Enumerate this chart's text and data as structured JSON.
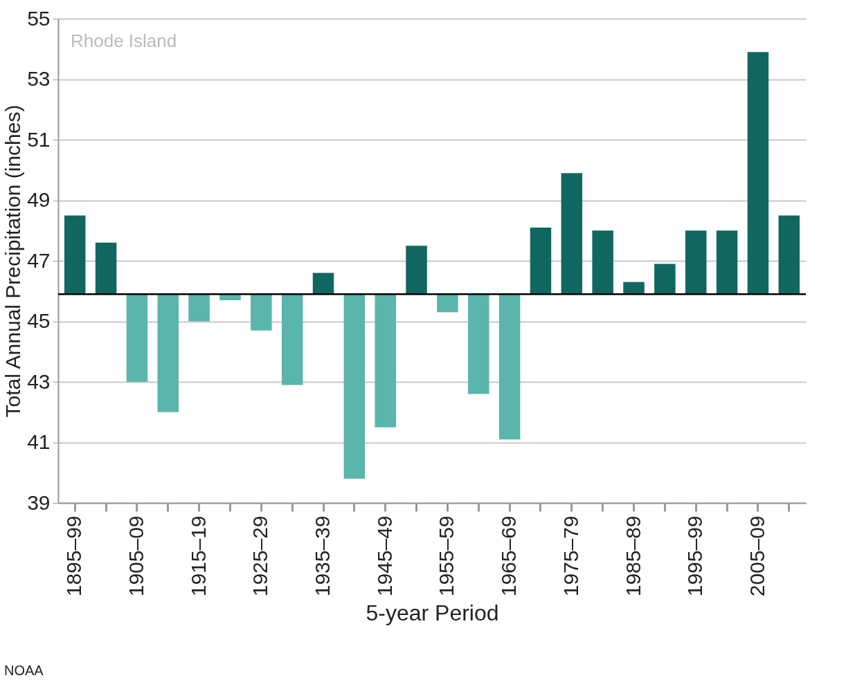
{
  "chart_data": {
    "type": "bar",
    "title": "Rhode Island",
    "xlabel": "5-year Period",
    "ylabel": "Total Annual Precipitation (inches)",
    "categories": [
      "1895–99",
      null,
      "1905–09",
      null,
      "1915–19",
      null,
      "1925–29",
      null,
      "1935–39",
      null,
      "1945–49",
      null,
      "1955–59",
      null,
      "1965–69",
      null,
      "1975–79",
      null,
      "1985–89",
      null,
      "1995–99",
      null,
      "2005–09",
      null
    ],
    "base": [
      45.9,
      45.9,
      45.9,
      45.9,
      45.9,
      45.9,
      45.9,
      45.9,
      45.9,
      45.9,
      45.9,
      45.9,
      45.9,
      45.9,
      45.9,
      45.9,
      45.9,
      45.9,
      45.9,
      45.9,
      45.9,
      45.9,
      45.9,
      45.9
    ],
    "values": [
      2.6,
      1.7,
      -2.9,
      -3.9,
      -0.9,
      -0.2,
      -1.2,
      -3.0,
      0.7,
      -6.1,
      -4.4,
      1.6,
      -0.6,
      -3.3,
      -4.8,
      2.2,
      4.0,
      2.1,
      0.4,
      1.0,
      2.1,
      2.1,
      8.0,
      2.6
    ],
    "colors": [
      "#10675f",
      "#10675f",
      "#5ab5aa",
      "#5ab5aa",
      "#5ab5aa",
      "#5ab5aa",
      "#5ab5aa",
      "#5ab5aa",
      "#10675f",
      "#5ab5aa",
      "#5ab5aa",
      "#10675f",
      "#5ab5aa",
      "#5ab5aa",
      "#5ab5aa",
      "#10675f",
      "#10675f",
      "#10675f",
      "#10675f",
      "#10675f",
      "#10675f",
      "#10675f",
      "#10675f",
      "#10675f"
    ],
    "ylim": [
      39,
      55
    ],
    "yticks": [
      39,
      41,
      43,
      45,
      47,
      49,
      51,
      53,
      55
    ],
    "grid": "y",
    "ref_lines": [
      {
        "axis": "y",
        "value": 45.9,
        "color": "#000000"
      }
    ],
    "annotations": [
      "NOAA"
    ]
  }
}
